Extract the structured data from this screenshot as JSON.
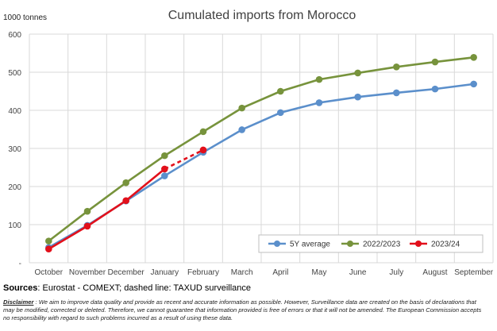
{
  "chart_data": {
    "type": "line",
    "title": "Cumulated imports from Morocco",
    "ylabel": "1000 tonnes",
    "ylim": [
      0,
      600
    ],
    "yticks": [
      "-",
      "100",
      "200",
      "300",
      "400",
      "500",
      "600"
    ],
    "categories": [
      "October",
      "November",
      "December",
      "January",
      "February",
      "March",
      "April",
      "May",
      "June",
      "July",
      "August",
      "September"
    ],
    "grid": true,
    "legend_position": "bottom-right",
    "series": [
      {
        "name": "5Y average",
        "color": "#5B8FCB",
        "values": [
          40,
          98,
          162,
          228,
          290,
          349,
          394,
          420,
          435,
          446,
          456,
          469
        ]
      },
      {
        "name": "2022/2023",
        "color": "#77933C",
        "values": [
          57,
          135,
          210,
          281,
          344,
          406,
          450,
          481,
          498,
          514,
          527,
          539
        ]
      },
      {
        "name": "2023/24",
        "color": "#E2101B",
        "values": [
          36,
          96,
          163,
          246,
          null,
          null,
          null,
          null,
          null,
          null,
          null,
          null
        ],
        "dashed_extension": [
          246,
          296
        ]
      }
    ]
  },
  "footer": {
    "sources_label": "Sources",
    "sources_text": ": Eurostat - COMEXT; dashed line: TAXUD surveillance",
    "disclaimer_label": "Disclaimer",
    "disclaimer_text": " : We aim to improve data quality and provide as recent and accurate information as possible. However, Surveillance data are created on the basis of declarations that may be modified, corrected or deleted. Therefore, we cannot guarantee that information provided is free of errors or that it will not be amended. The European Commission accepts no responsibility with regard to such problems incurred as a result of using these data."
  }
}
